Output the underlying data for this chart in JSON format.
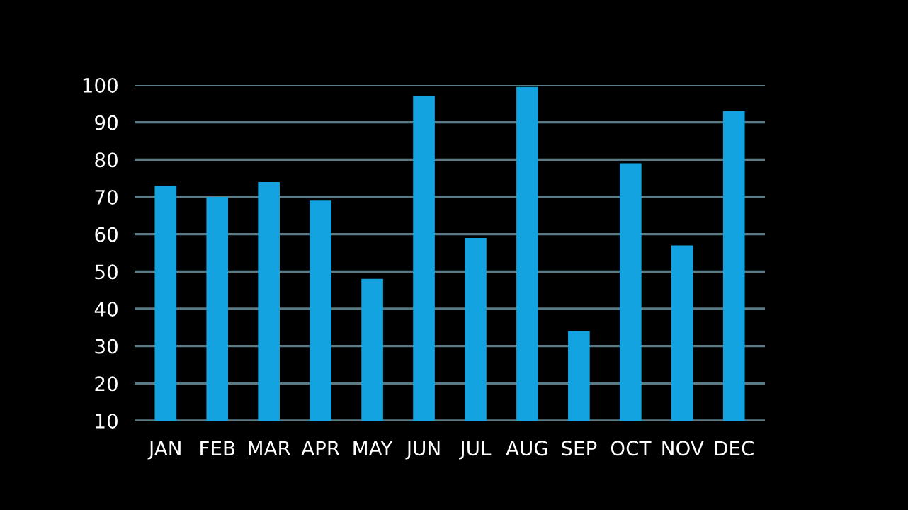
{
  "chart_data": {
    "type": "bar",
    "categories": [
      "JAN",
      "FEB",
      "MAR",
      "APR",
      "MAY",
      "JUN",
      "JUL",
      "AUG",
      "SEP",
      "OCT",
      "NOV",
      "DEC"
    ],
    "values": [
      73,
      70,
      74,
      69,
      48,
      97,
      59,
      99.5,
      34,
      79,
      57,
      93
    ],
    "color": "#12a3e0",
    "ylim": [
      10,
      100
    ],
    "yticks": [
      10,
      20,
      30,
      40,
      50,
      60,
      70,
      80,
      90,
      100
    ],
    "grid": "y"
  }
}
